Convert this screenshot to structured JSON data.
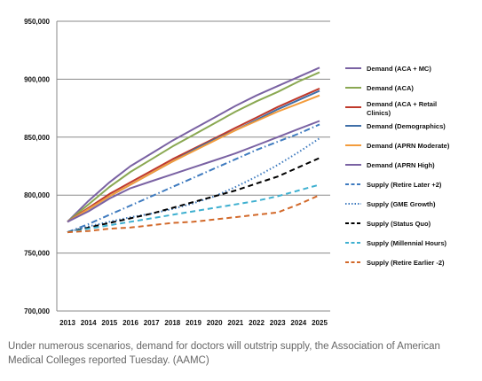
{
  "caption": "Under numerous scenarios, demand for doctors will outstrip supply, the Association of American Medical Colleges reported Tuesday. (AAMC)",
  "chart_data": {
    "type": "line",
    "title": "",
    "xlabel": "",
    "ylabel": "",
    "x": [
      2013,
      2014,
      2015,
      2016,
      2017,
      2018,
      2019,
      2020,
      2021,
      2022,
      2023,
      2024,
      2025
    ],
    "ylim": [
      700000,
      950000
    ],
    "yticks": [
      700000,
      750000,
      800000,
      850000,
      900000,
      950000
    ],
    "ytick_labels": [
      "700,000",
      "750,000",
      "800,000",
      "850,000",
      "900,000",
      "950,000"
    ],
    "grid": true,
    "legend_position": "right",
    "series": [
      {
        "name": "Demand (ACA + MC)",
        "color": "#7a62a3",
        "dash": "solid",
        "values": [
          777000,
          795000,
          811000,
          825000,
          836000,
          847000,
          857000,
          867000,
          877000,
          886000,
          894000,
          902000,
          910000
        ]
      },
      {
        "name": "Demand (ACA)",
        "color": "#8aa852",
        "dash": "solid",
        "values": [
          777000,
          792000,
          807000,
          820000,
          831000,
          842000,
          852000,
          862000,
          872000,
          881000,
          889000,
          898000,
          906000
        ]
      },
      {
        "name": "Demand (ACA + Retail Clinics)",
        "color": "#c0392b",
        "dash": "solid",
        "values": [
          777000,
          789000,
          801000,
          811000,
          821000,
          831000,
          840000,
          849000,
          858000,
          867000,
          876000,
          884000,
          892000
        ]
      },
      {
        "name": "Demand (Demographics)",
        "color": "#3f6fa8",
        "dash": "solid",
        "values": [
          777000,
          788000,
          799000,
          809000,
          819000,
          829000,
          839000,
          848000,
          856000,
          865000,
          874000,
          882000,
          890000
        ]
      },
      {
        "name": "Demand (APRN Moderate)",
        "color": "#f39c3c",
        "dash": "solid",
        "values": [
          777000,
          788000,
          799000,
          809000,
          819000,
          829000,
          838000,
          847000,
          856000,
          864000,
          872000,
          879000,
          886000
        ]
      },
      {
        "name": "Demand (APRN High)",
        "color": "#7a62a3",
        "dash": "solid",
        "values": [
          777000,
          786000,
          797000,
          806000,
          812000,
          818000,
          824000,
          830000,
          836000,
          843000,
          850000,
          857000,
          864000
        ]
      },
      {
        "name": "Supply (Retire Later +2)",
        "color": "#3f7bbf",
        "dash": "dashdot",
        "values": [
          768000,
          775000,
          783000,
          791000,
          799000,
          807000,
          815000,
          823000,
          831000,
          839000,
          846000,
          853000,
          861000
        ]
      },
      {
        "name": "Supply (GME Growth)",
        "color": "#3f7bbf",
        "dash": "dotted",
        "values": [
          768000,
          773000,
          777000,
          781000,
          784000,
          788000,
          793000,
          799000,
          807000,
          816000,
          826000,
          837000,
          849000
        ]
      },
      {
        "name": "Supply (Status Quo)",
        "color": "#000000",
        "dash": "dashed",
        "values": [
          768000,
          772000,
          776000,
          780000,
          784000,
          789000,
          794000,
          799000,
          804000,
          810000,
          816000,
          824000,
          832000
        ]
      },
      {
        "name": "Supply (Millennial Hours)",
        "color": "#3fb0d0",
        "dash": "dashed",
        "values": [
          768000,
          771000,
          774000,
          777000,
          780000,
          783000,
          786000,
          789000,
          792000,
          795000,
          799000,
          804000,
          809000
        ]
      },
      {
        "name": "Supply (Retire Earlier -2)",
        "color": "#d2692a",
        "dash": "dashed",
        "values": [
          768000,
          769000,
          771000,
          772000,
          774000,
          776000,
          777000,
          779000,
          781000,
          783000,
          785000,
          792000,
          800000
        ]
      }
    ]
  }
}
